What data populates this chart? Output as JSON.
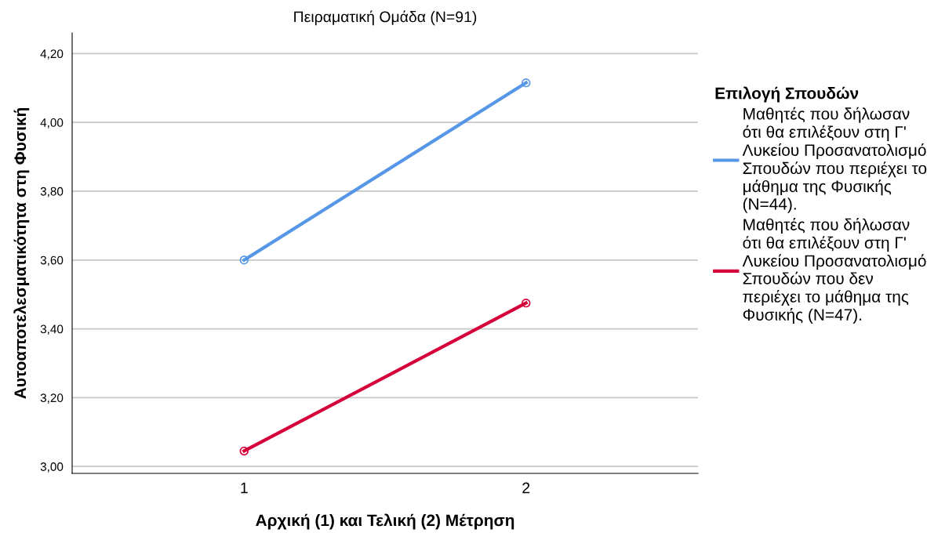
{
  "chart_data": {
    "type": "line",
    "title": "Πειραματική Ομάδα (N=91)",
    "xlabel": "Αρχική (1) και Τελική (2) Μέτρηση",
    "ylabel": "Αυτοαποτελεσματικότητα στη Φυσική",
    "legend_title": "Επιλογή Σπουδών",
    "categories": [
      "1",
      "2"
    ],
    "series": [
      {
        "name": "Μαθητές που δήλωσαν\nότι θα επιλέξουν στη Γ'\nΛυκείου Προσανατολισμό\nΣπουδών που περιέχει το\nμάθημα της Φυσικής\n(N=44).",
        "color": "#5596e6",
        "values": [
          3.6,
          4.115
        ]
      },
      {
        "name": "Μαθητές που δήλωσαν\nότι θα επιλέξουν στη Γ'\nΛυκείου Προσανατολισμό\nΣπουδών που δεν\nπεριέχει το μάθημα της\nΦυσικής (N=47).",
        "color": "#d5003a",
        "values": [
          3.045,
          3.475
        ]
      }
    ],
    "ylim": [
      2.98,
      4.26
    ],
    "yticks": [
      {
        "value": 3.0,
        "label": "3,00"
      },
      {
        "value": 3.2,
        "label": "3,20"
      },
      {
        "value": 3.4,
        "label": "3,40"
      },
      {
        "value": 3.6,
        "label": "3,60"
      },
      {
        "value": 3.8,
        "label": "3,80"
      },
      {
        "value": 4.0,
        "label": "4,00"
      },
      {
        "value": 4.2,
        "label": "4,20"
      }
    ],
    "grid": "y",
    "legend": "right",
    "marker": "circle",
    "line_style": "solid"
  }
}
